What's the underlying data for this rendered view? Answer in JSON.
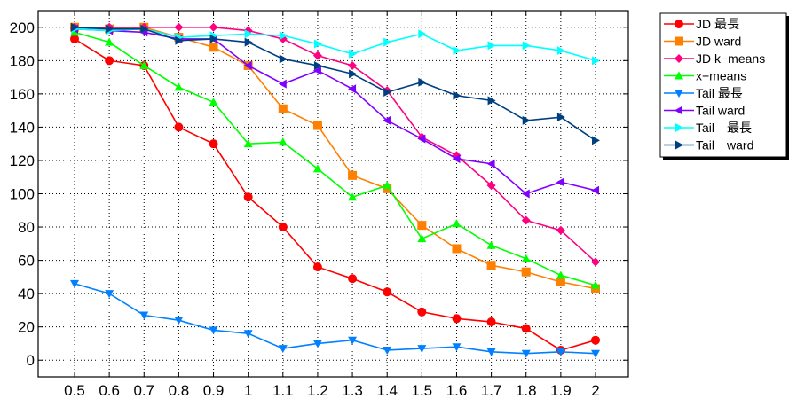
{
  "chart_data": {
    "type": "line",
    "title": "",
    "xlabel": "",
    "ylabel": "",
    "x": [
      0.5,
      0.6,
      0.7,
      0.8,
      0.9,
      1,
      1.1,
      1.2,
      1.3,
      1.4,
      1.5,
      1.6,
      1.7,
      1.8,
      1.9,
      2
    ],
    "x_tick_labels": [
      "0.5",
      "0.6",
      "0.7",
      "0.8",
      "0.9",
      "1",
      "1.1",
      "1.2",
      "1.3",
      "1.4",
      "1.5",
      "1.6",
      "1.7",
      "1.8",
      "1.9",
      "2"
    ],
    "ylim": [
      -10,
      210
    ],
    "y_ticks": [
      0,
      20,
      40,
      60,
      80,
      100,
      120,
      140,
      160,
      180,
      200
    ],
    "y_tick_labels": [
      "0",
      "20",
      "40",
      "60",
      "80",
      "100",
      "120",
      "140",
      "160",
      "180",
      "200"
    ],
    "grid": true,
    "legend_position": "right",
    "series": [
      {
        "name": "JD 最長",
        "color": "#ff0000",
        "marker": "circle",
        "values": [
          193,
          180,
          177,
          140,
          130,
          98,
          80,
          56,
          49,
          41,
          29,
          25,
          23,
          19,
          6,
          12
        ]
      },
      {
        "name": "JD ward",
        "color": "#ff8000",
        "marker": "square",
        "values": [
          200,
          199,
          200,
          194,
          188,
          177,
          151,
          141,
          111,
          103,
          81,
          67,
          57,
          53,
          47,
          43
        ]
      },
      {
        "name": "JD k−means",
        "color": "#ff0080",
        "marker": "diamond",
        "values": [
          200,
          200,
          200,
          200,
          200,
          198,
          193,
          183,
          177,
          162,
          134,
          123,
          105,
          84,
          78,
          59
        ]
      },
      {
        "name": "x−means",
        "color": "#00ff00",
        "marker": "triangle-up",
        "values": [
          197,
          191,
          177,
          164,
          155,
          130,
          131,
          115,
          98,
          105,
          73,
          82,
          69,
          61,
          51,
          45
        ]
      },
      {
        "name": "Tail 最長",
        "color": "#0080ff",
        "marker": "triangle-down",
        "values": [
          46,
          40,
          27,
          24,
          18,
          16,
          7,
          10,
          12,
          6,
          7,
          8,
          5,
          4,
          5,
          4
        ]
      },
      {
        "name": "Tail ward",
        "color": "#8000ff",
        "marker": "triangle-left",
        "values": [
          199,
          198,
          197,
          193,
          193,
          177,
          166,
          174,
          163,
          144,
          133,
          121,
          118,
          100,
          107,
          102
        ]
      },
      {
        "name": "Tail　最長",
        "color": "#00ffff",
        "marker": "triangle-right",
        "values": [
          199,
          198,
          199,
          194,
          195,
          196,
          195,
          190,
          184,
          191,
          196,
          186,
          189,
          189,
          186,
          180
        ]
      },
      {
        "name": "Tail　ward",
        "color": "#004080",
        "marker": "triangle-right",
        "values": [
          200,
          199,
          199,
          192,
          193,
          191,
          181,
          177,
          172,
          161,
          167,
          159,
          156,
          144,
          146,
          132
        ]
      }
    ]
  }
}
